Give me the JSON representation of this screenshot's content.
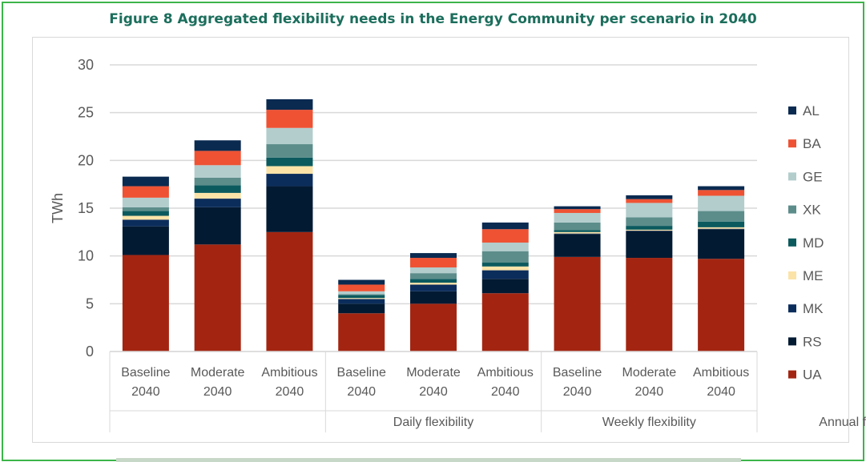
{
  "chart_data": {
    "type": "bar",
    "stacked": true,
    "title": "Figure 8 Aggregated flexibility needs in the Energy Community per scenario in 2040",
    "ylabel": "TWh",
    "xlabel": "",
    "ylim": [
      0,
      30
    ],
    "yticks": [
      "0",
      "5",
      "10",
      "15",
      "20",
      "25",
      "30"
    ],
    "grid": true,
    "legend_position": "right",
    "groups": [
      "Daily flexibility",
      "Weekly flexibility",
      "Annual flexibility"
    ],
    "categories": [
      [
        "Baseline",
        "2040"
      ],
      [
        "Moderate",
        "2040"
      ],
      [
        "Ambitious",
        "2040"
      ],
      [
        "Baseline",
        "2040"
      ],
      [
        "Moderate",
        "2040"
      ],
      [
        "Ambitious",
        "2040"
      ],
      [
        "Baseline",
        "2040"
      ],
      [
        "Moderate",
        "2040"
      ],
      [
        "Ambitious",
        "2040"
      ]
    ],
    "series": [
      {
        "name": "UA",
        "color": "#a32511",
        "values": [
          10.1,
          11.2,
          12.5,
          4.0,
          5.0,
          6.1,
          9.9,
          9.8,
          9.7
        ]
      },
      {
        "name": "RS",
        "color": "#031a33",
        "values": [
          3.0,
          3.9,
          4.8,
          1.0,
          1.3,
          1.5,
          2.4,
          2.8,
          3.1
        ]
      },
      {
        "name": "MK",
        "color": "#0b2d5c",
        "values": [
          0.7,
          0.9,
          1.3,
          0.5,
          0.7,
          0.9,
          0.05,
          0.05,
          0.05
        ]
      },
      {
        "name": "ME",
        "color": "#fbe3a8",
        "values": [
          0.4,
          0.6,
          0.8,
          0.1,
          0.2,
          0.4,
          0.15,
          0.1,
          0.15
        ]
      },
      {
        "name": "MD",
        "color": "#0b5a5e",
        "values": [
          0.5,
          0.8,
          0.9,
          0.3,
          0.4,
          0.4,
          0.2,
          0.4,
          0.6
        ]
      },
      {
        "name": "XK",
        "color": "#5c8d8a",
        "values": [
          0.4,
          0.8,
          1.4,
          0.1,
          0.6,
          1.2,
          0.8,
          0.9,
          1.1
        ]
      },
      {
        "name": "GE",
        "color": "#b3cdcd",
        "values": [
          1.0,
          1.3,
          1.7,
          0.3,
          0.6,
          0.9,
          1.0,
          1.5,
          1.6
        ]
      },
      {
        "name": "BA",
        "color": "#ee5233",
        "values": [
          1.2,
          1.5,
          1.9,
          0.7,
          1.0,
          1.4,
          0.4,
          0.4,
          0.6
        ]
      },
      {
        "name": "AL",
        "color": "#0a2a50",
        "values": [
          1.0,
          1.1,
          1.1,
          0.5,
          0.5,
          0.7,
          0.3,
          0.4,
          0.4
        ]
      }
    ]
  }
}
